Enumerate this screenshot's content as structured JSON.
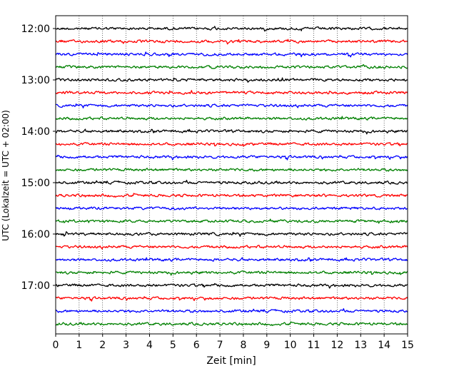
{
  "chart_data": {
    "type": "line",
    "title": "",
    "xlabel": "Zeit  [min]",
    "ylabel": "UTC (Lokalzeit = UTC + 02:00)",
    "xlim": [
      0,
      15
    ],
    "x_ticks": [
      0,
      1,
      2,
      3,
      4,
      5,
      6,
      7,
      8,
      9,
      10,
      11,
      12,
      13,
      14,
      15
    ],
    "y_ticks": [
      "12:00",
      "13:00",
      "14:00",
      "15:00",
      "16:00",
      "17:00"
    ],
    "traces_start": "12:00",
    "trace_interval_minutes": 15,
    "trace_count": 24,
    "trace_colors": [
      "#000000",
      "#ff0000",
      "#0000ff",
      "#008000"
    ],
    "grid": "vertical dotted lines at each minute",
    "legend": "none",
    "description": ""
  }
}
